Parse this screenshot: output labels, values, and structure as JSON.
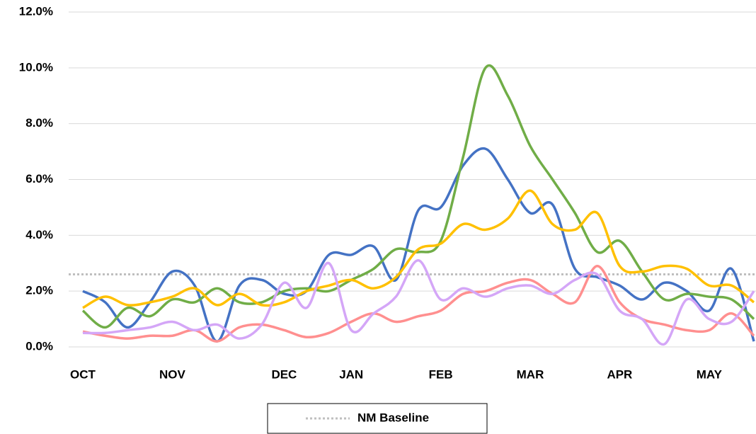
{
  "chart_data": {
    "type": "line",
    "categories": [
      "OCT",
      null,
      null,
      null,
      "NOV",
      null,
      null,
      null,
      null,
      "DEC",
      null,
      null,
      "JAN",
      null,
      null,
      null,
      "FEB",
      null,
      null,
      null,
      "MAR",
      null,
      null,
      null,
      "APR",
      null,
      null,
      null,
      "MAY",
      null,
      null
    ],
    "ylim": [
      0,
      12
    ],
    "yticks": [
      {
        "value": 0,
        "label": "0.0%"
      },
      {
        "value": 2,
        "label": "2.0%"
      },
      {
        "value": 4,
        "label": "4.0%"
      },
      {
        "value": 6,
        "label": "6.0%"
      },
      {
        "value": 8,
        "label": "8.0%"
      },
      {
        "value": 10,
        "label": "10.0%"
      },
      {
        "value": 12,
        "label": "12.0%"
      }
    ],
    "grid": true,
    "smooth": true,
    "series": [
      {
        "color": "#4472c4",
        "values": [
          2.0,
          1.6,
          0.7,
          1.6,
          2.7,
          2.2,
          0.2,
          2.2,
          2.4,
          1.9,
          2.0,
          3.3,
          3.3,
          3.6,
          2.4,
          4.9,
          5.0,
          6.5,
          7.1,
          6.0,
          4.8,
          5.1,
          2.8,
          2.5,
          2.2,
          1.7,
          2.3,
          2.0,
          1.3,
          2.8,
          0.2
        ]
      },
      {
        "color": "#70ad47",
        "values": [
          1.3,
          0.7,
          1.4,
          1.1,
          1.7,
          1.6,
          2.1,
          1.6,
          1.6,
          2.0,
          2.1,
          2.0,
          2.4,
          2.8,
          3.5,
          3.4,
          3.8,
          6.8,
          10.0,
          9.0,
          7.2,
          6.0,
          4.8,
          3.4,
          3.8,
          2.7,
          1.7,
          1.9,
          1.8,
          1.7,
          1.0
        ]
      },
      {
        "color": "#ffc000",
        "values": [
          1.4,
          1.8,
          1.5,
          1.6,
          1.8,
          2.1,
          1.5,
          1.9,
          1.5,
          1.6,
          2.0,
          2.2,
          2.4,
          2.1,
          2.5,
          3.5,
          3.7,
          4.4,
          4.2,
          4.6,
          5.6,
          4.4,
          4.2,
          4.8,
          2.9,
          2.7,
          2.9,
          2.8,
          2.2,
          2.2,
          1.6
        ]
      },
      {
        "color": "#ff8f8f",
        "values": [
          0.55,
          0.4,
          0.3,
          0.4,
          0.4,
          0.6,
          0.2,
          0.7,
          0.8,
          0.6,
          0.35,
          0.5,
          0.9,
          1.2,
          0.9,
          1.1,
          1.3,
          1.9,
          2.0,
          2.3,
          2.4,
          1.9,
          1.6,
          2.9,
          1.6,
          1.0,
          0.8,
          0.6,
          0.6,
          1.2,
          0.4
        ]
      },
      {
        "color": "#d4a6f7",
        "values": [
          0.5,
          0.5,
          0.6,
          0.7,
          0.9,
          0.6,
          0.8,
          0.3,
          0.8,
          2.3,
          1.4,
          3.0,
          0.6,
          1.2,
          1.8,
          3.1,
          1.7,
          2.1,
          1.8,
          2.1,
          2.2,
          1.9,
          2.4,
          2.6,
          1.3,
          1.0,
          0.1,
          1.7,
          1.0,
          0.9,
          2.0
        ]
      }
    ],
    "baseline": {
      "name": "NM Baseline",
      "value": 2.6,
      "color": "#bfbfbf"
    }
  }
}
